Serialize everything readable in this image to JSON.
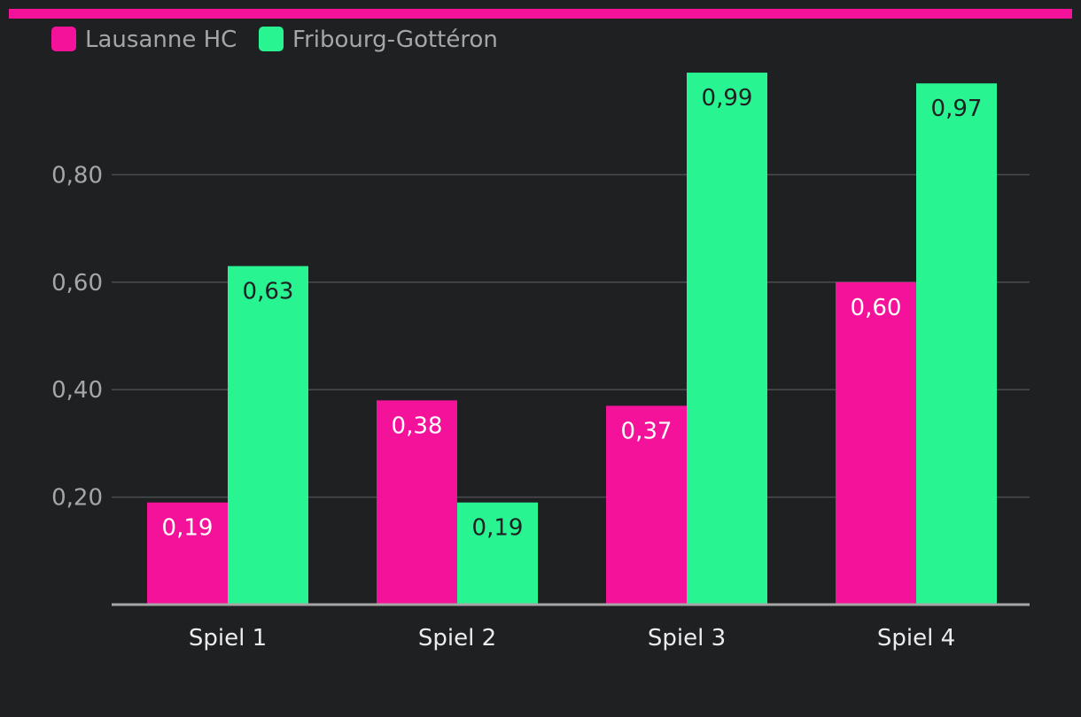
{
  "chart_data": {
    "type": "bar",
    "categories": [
      "Spiel 1",
      "Spiel 2",
      "Spiel 3",
      "Spiel 4"
    ],
    "series": [
      {
        "name": "Lausanne HC",
        "color": "#f5129b",
        "value_label_color": "#ffffff",
        "values": [
          0.19,
          0.38,
          0.37,
          0.6
        ],
        "value_labels": [
          "0,19",
          "0,38",
          "0,37",
          "0,60"
        ]
      },
      {
        "name": "Fribourg-Gottéron",
        "color": "#28f591",
        "value_label_color": "#1e2022",
        "values": [
          0.63,
          0.19,
          0.99,
          0.97
        ],
        "value_labels": [
          "0,63",
          "0,19",
          "0,99",
          "0,97"
        ]
      }
    ],
    "y_ticks": [
      0.2,
      0.4,
      0.6,
      0.8
    ],
    "y_tick_labels": [
      "0,20",
      "0,40",
      "0,60",
      "0,80"
    ],
    "ylim": [
      0,
      1.0
    ],
    "grid": true,
    "legend_position": "top-left",
    "accent_color": "#f5129b",
    "background_color": "#1e2022",
    "grid_color": "#4a4c4f",
    "axis_color": "#a6a6a6"
  }
}
